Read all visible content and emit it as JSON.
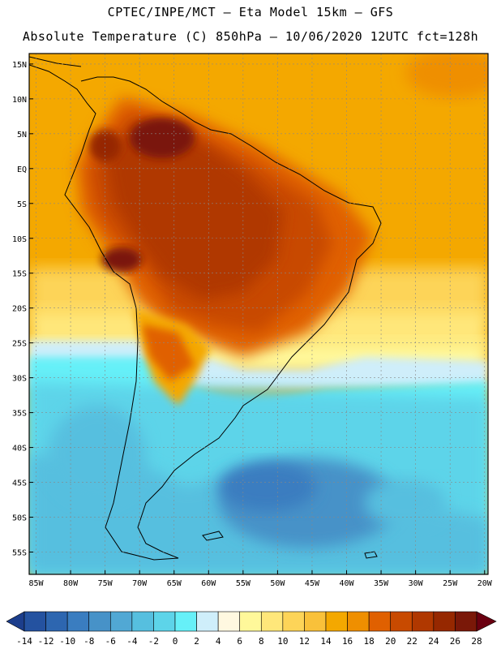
{
  "header": {
    "line1": "CPTEC/INPE/MCT –  Eta Model 15km – GFS",
    "line2": "Absolute Temperature (C) 850hPa – 10/06/2020 12UTC fct=128h"
  },
  "lat_labels": [
    "15N",
    "10N",
    "5N",
    "EQ",
    "5S",
    "10S",
    "15S",
    "20S",
    "25S",
    "30S",
    "35S",
    "40S",
    "45S",
    "50S",
    "55S"
  ],
  "lat_values": [
    15,
    10,
    5,
    0,
    -5,
    -10,
    -15,
    -20,
    -25,
    -30,
    -35,
    -40,
    -45,
    -50,
    -55
  ],
  "lon_labels": [
    "85W",
    "80W",
    "75W",
    "70W",
    "65W",
    "60W",
    "55W",
    "50W",
    "45W",
    "40W",
    "35W",
    "30W",
    "25W",
    "20W"
  ],
  "lon_values": [
    -85,
    -80,
    -75,
    -70,
    -65,
    -60,
    -55,
    -50,
    -45,
    -40,
    -35,
    -30,
    -25,
    -20
  ],
  "colorbar": {
    "labels": [
      "-14",
      "-12",
      "-10",
      "-8",
      "-6",
      "-4",
      "-2",
      "0",
      "2",
      "4",
      "6",
      "8",
      "10",
      "12",
      "14",
      "16",
      "18",
      "20",
      "22",
      "24",
      "26",
      "28"
    ],
    "colors": [
      "#1c3e8c",
      "#2452a0",
      "#2d66b0",
      "#3a7dc0",
      "#4792c8",
      "#51a8d4",
      "#56bfdf",
      "#5dd4e9",
      "#66f0f8",
      "#cfeefa",
      "#fff8e0",
      "#fff89a",
      "#ffe77a",
      "#fdd458",
      "#f9c13a",
      "#f4a800",
      "#ef8f00",
      "#e06000",
      "#c84a00",
      "#b03800",
      "#962800",
      "#7a1808",
      "#6a0010"
    ]
  },
  "colors": {
    "land_outline": "#000000",
    "grid": "#888888"
  }
}
